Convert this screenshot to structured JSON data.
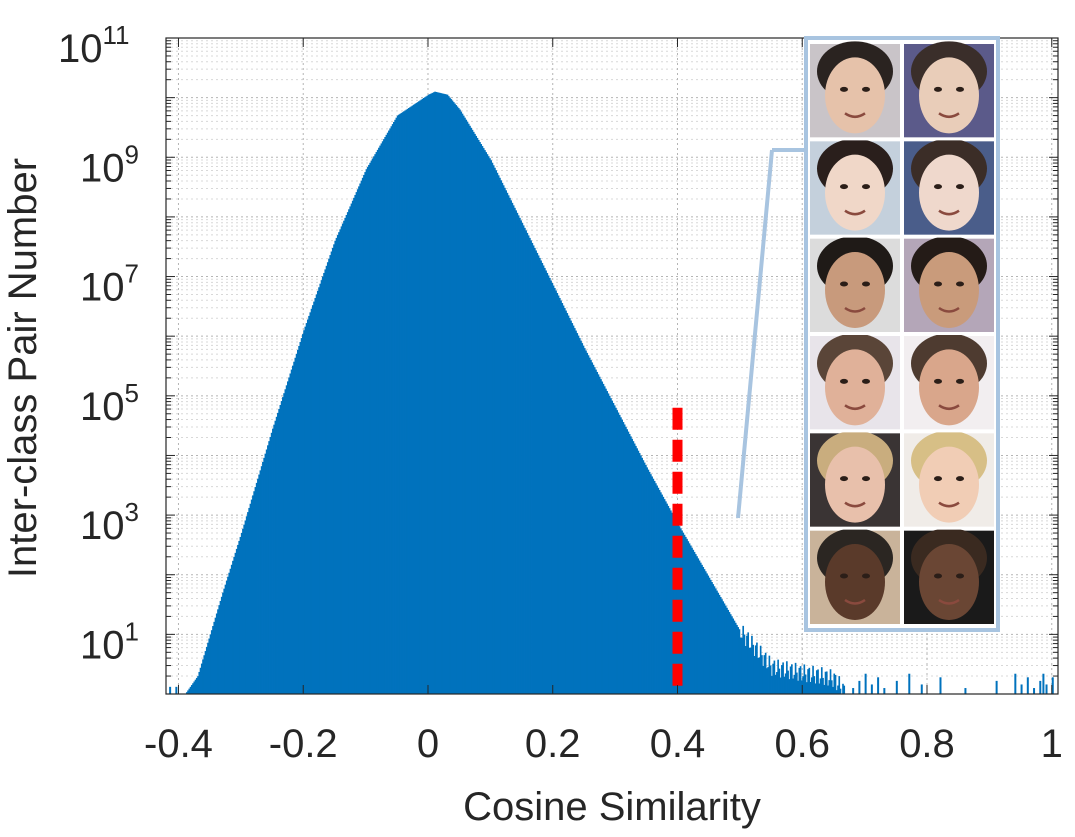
{
  "chart_data": {
    "type": "bar",
    "title": "",
    "xlabel": "Cosine Similarity",
    "ylabel": "Inter-class Pair Number",
    "xlim": [
      -0.42,
      1.01
    ],
    "ylim_log10": [
      0,
      11
    ],
    "y_scale": "log",
    "grid": "major and minor, dotted",
    "bar_color": "#0072BD",
    "threshold": {
      "x": 0.4,
      "style": "dashed",
      "color": "#ff0000",
      "peak_log10": 4.8
    },
    "xticks": [
      {
        "value": -0.4,
        "label": "-0.4"
      },
      {
        "value": -0.2,
        "label": "-0.2"
      },
      {
        "value": 0,
        "label": "0"
      },
      {
        "value": 0.2,
        "label": "0.2"
      },
      {
        "value": 0.4,
        "label": "0.4"
      },
      {
        "value": 0.6,
        "label": "0.6"
      },
      {
        "value": 0.8,
        "label": "0.8"
      },
      {
        "value": 1,
        "label": "1"
      }
    ],
    "yticks": [
      {
        "exp": 1,
        "base": "10",
        "sup": "1"
      },
      {
        "exp": 3,
        "base": "10",
        "sup": "3"
      },
      {
        "exp": 5,
        "base": "10",
        "sup": "5"
      },
      {
        "exp": 7,
        "base": "10",
        "sup": "7"
      },
      {
        "exp": 9,
        "base": "10",
        "sup": "9"
      },
      {
        "exp": 11,
        "base": "10",
        "sup": "11"
      }
    ],
    "distribution_log10": {
      "x": [
        -0.39,
        -0.37,
        -0.35,
        -0.33,
        -0.3,
        -0.25,
        -0.2,
        -0.15,
        -0.1,
        -0.05,
        0.0,
        0.01,
        0.03,
        0.05,
        0.1,
        0.15,
        0.2,
        0.25,
        0.3,
        0.35,
        0.4,
        0.45,
        0.5,
        0.55,
        0.6,
        0.63,
        0.65,
        0.67
      ],
      "y": [
        0.0,
        0.3,
        1.0,
        1.7,
        2.7,
        4.45,
        6.1,
        7.6,
        8.8,
        9.7,
        10.05,
        10.1,
        10.05,
        9.8,
        8.95,
        7.9,
        6.85,
        5.8,
        4.8,
        3.8,
        2.85,
        1.95,
        1.05,
        0.45,
        0.35,
        0.3,
        0.25,
        0.0
      ]
    },
    "sparse_tail_x": [
      0.68,
      0.69,
      0.7,
      0.71,
      0.72,
      0.73,
      0.75,
      0.77,
      0.79,
      0.82,
      0.86,
      0.91,
      0.94,
      0.95,
      0.96,
      0.97,
      0.98,
      0.985,
      0.99,
      1.0
    ],
    "inset": {
      "description": "six pairs of face images with high inter-class similarity",
      "pairs": 6,
      "frame_color": "#a8c4e0"
    }
  }
}
